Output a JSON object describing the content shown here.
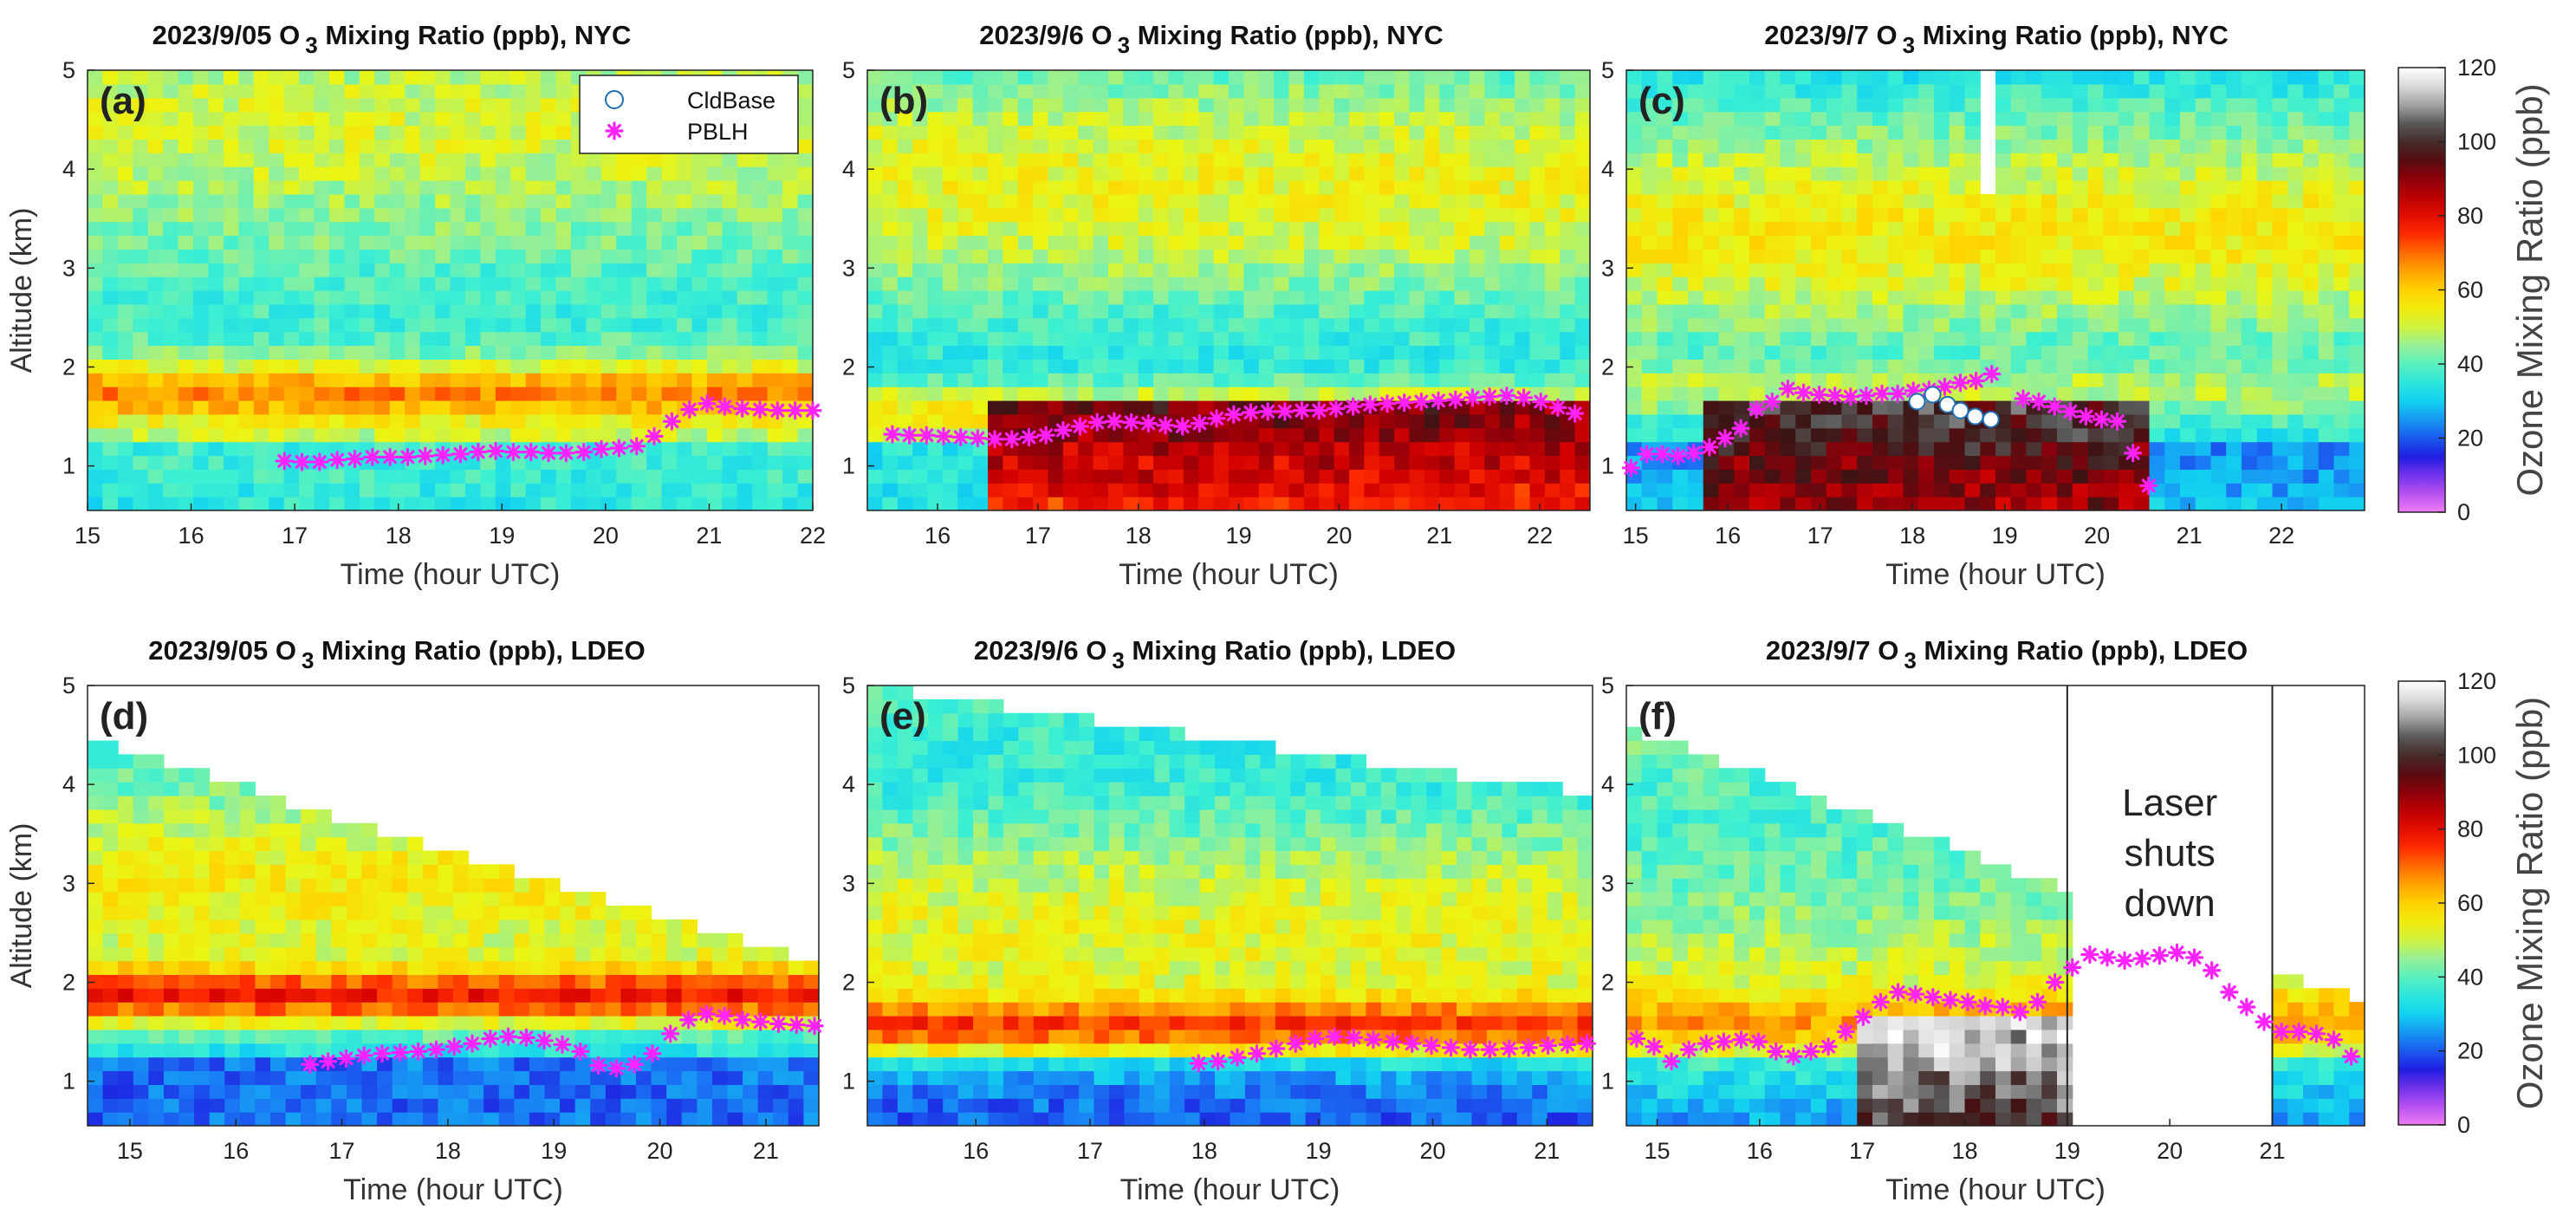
{
  "chart_data": [
    {
      "id": "a",
      "type": "heatmap",
      "panel_label": "(a)",
      "title": "2023/9/05 O 3 Mixing Ratio (ppb), NYC",
      "title_parts": [
        "2023/9/05 O",
        "3",
        " Mixing Ratio (ppb), NYC"
      ],
      "xlabel": "Time (hour UTC)",
      "ylabel": "Altitude (km)",
      "xlim": [
        15,
        22
      ],
      "ylim": [
        0.55,
        5
      ],
      "xticks": [
        "15",
        "16",
        "17",
        "18",
        "19",
        "20",
        "21",
        "22"
      ],
      "xtick_values": [
        15,
        16,
        17,
        18,
        19,
        20,
        21,
        22
      ],
      "yticks": [
        "1",
        "2",
        "3",
        "4",
        "5"
      ],
      "ytick_values": [
        1,
        2,
        3,
        4,
        5
      ],
      "data_start": 15,
      "data_end": 22,
      "data_top": 5,
      "layer_alt": 1.75,
      "layer_peak": 72,
      "pblh": {
        "x": [
          16.9,
          17.07,
          17.24,
          17.41,
          17.58,
          17.75,
          17.92,
          18.09,
          18.26,
          18.43,
          18.6,
          18.77,
          18.94,
          19.11,
          19.28,
          19.45,
          19.62,
          19.79,
          19.96,
          20.13,
          20.3,
          20.47,
          20.64,
          20.81,
          20.98,
          21.15,
          21.32,
          21.49,
          21.66,
          21.83,
          22.0
        ],
        "y": [
          1.05,
          1.04,
          1.04,
          1.06,
          1.07,
          1.09,
          1.09,
          1.09,
          1.1,
          1.11,
          1.12,
          1.14,
          1.15,
          1.14,
          1.14,
          1.13,
          1.13,
          1.14,
          1.17,
          1.18,
          1.2,
          1.3,
          1.45,
          1.57,
          1.63,
          1.6,
          1.58,
          1.57,
          1.56,
          1.56,
          1.56
        ]
      },
      "legend": {
        "entries": [
          "CldBase",
          "PBLH"
        ],
        "location": "top-right"
      }
    },
    {
      "id": "b",
      "type": "heatmap",
      "panel_label": "(b)",
      "title": "2023/9/6 O 3 Mixing Ratio (ppb), NYC",
      "title_parts": [
        "2023/9/6 O",
        "3",
        " Mixing Ratio (ppb), NYC"
      ],
      "xlabel": "Time (hour UTC)",
      "ylabel": "",
      "xlim": [
        15.3,
        22.5
      ],
      "ylim": [
        0.55,
        5
      ],
      "xticks": [
        "16",
        "17",
        "18",
        "19",
        "20",
        "21",
        "22"
      ],
      "xtick_values": [
        16,
        17,
        18,
        19,
        20,
        21,
        22
      ],
      "yticks": [
        "1",
        "2",
        "3",
        "4",
        "5"
      ],
      "ytick_values": [
        1,
        2,
        3,
        4,
        5
      ],
      "data_start": 15.3,
      "data_end": 22.5,
      "data_top": 5,
      "layer_alt": 1.55,
      "layer_peak": 66,
      "bl_start": 16.5,
      "bl_peak": 88,
      "pblh": {
        "x": [
          15.55,
          15.72,
          15.89,
          16.06,
          16.23,
          16.4,
          16.57,
          16.74,
          16.91,
          17.08,
          17.25,
          17.42,
          17.59,
          17.76,
          17.93,
          18.1,
          18.27,
          18.44,
          18.61,
          18.78,
          18.95,
          19.12,
          19.29,
          19.46,
          19.63,
          19.8,
          19.97,
          20.14,
          20.31,
          20.48,
          20.65,
          20.82,
          20.99,
          21.16,
          21.33,
          21.5,
          21.67,
          21.84,
          22.01,
          22.18,
          22.35
        ],
        "y": [
          1.32,
          1.31,
          1.31,
          1.3,
          1.29,
          1.28,
          1.27,
          1.27,
          1.29,
          1.31,
          1.36,
          1.4,
          1.44,
          1.45,
          1.44,
          1.43,
          1.41,
          1.4,
          1.43,
          1.48,
          1.52,
          1.54,
          1.55,
          1.55,
          1.56,
          1.56,
          1.58,
          1.6,
          1.62,
          1.63,
          1.64,
          1.65,
          1.66,
          1.67,
          1.69,
          1.7,
          1.71,
          1.69,
          1.65,
          1.59,
          1.53
        ]
      }
    },
    {
      "id": "c",
      "type": "heatmap",
      "panel_label": "(c)",
      "title": "2023/9/7 O 3 Mixing Ratio (ppb), NYC",
      "title_parts": [
        "2023/9/7 O",
        "3",
        " Mixing Ratio (ppb), NYC"
      ],
      "xlabel": "Time (hour UTC)",
      "ylabel": "",
      "xlim": [
        14.9,
        22.9
      ],
      "ylim": [
        0.55,
        5
      ],
      "xticks": [
        "15",
        "16",
        "17",
        "18",
        "19",
        "20",
        "21",
        "22"
      ],
      "xtick_values": [
        15,
        16,
        17,
        18,
        19,
        20,
        21,
        22
      ],
      "yticks": [
        "1",
        "2",
        "3",
        "4",
        "5"
      ],
      "ytick_values": [
        1,
        2,
        3,
        4,
        5
      ],
      "data_start": 14.9,
      "data_end": 22.9,
      "data_top": 5,
      "layer_alt": 1.75,
      "layer_peak": 62,
      "bl_start": 15.8,
      "bl_end": 20.5,
      "bl_peak": 98,
      "gap": {
        "x0": 18.7,
        "x1": 18.82,
        "y_from": 3.8
      },
      "pblh": {
        "x": [
          14.95,
          15.12,
          15.29,
          15.46,
          15.63,
          15.8,
          15.97,
          16.14,
          16.31,
          16.48,
          16.65,
          16.82,
          16.99,
          17.16,
          17.33,
          17.5,
          17.67,
          17.84,
          18.01,
          18.18,
          18.35,
          18.52,
          18.69,
          18.86,
          19.03,
          19.2,
          19.37,
          19.54,
          19.71,
          19.88,
          20.05,
          20.22,
          20.39,
          20.56
        ],
        "y": [
          0.98,
          1.12,
          1.12,
          1.1,
          1.13,
          1.19,
          1.28,
          1.38,
          1.57,
          1.65,
          1.78,
          1.74,
          1.72,
          1.71,
          1.7,
          1.71,
          1.73,
          1.73,
          1.76,
          1.77,
          1.8,
          1.84,
          1.86,
          1.93,
          null,
          1.68,
          1.65,
          1.6,
          1.55,
          1.5,
          1.47,
          1.45,
          1.13,
          0.8
        ]
      },
      "cldbase": {
        "x": [
          18.05,
          18.22,
          18.38,
          18.52,
          18.68,
          18.85
        ],
        "y": [
          1.65,
          1.72,
          1.62,
          1.56,
          1.5,
          1.47
        ]
      }
    },
    {
      "id": "d",
      "type": "heatmap",
      "panel_label": "(d)",
      "title": "2023/9/05 O 3 Mixing Ratio (ppb), LDEO",
      "title_parts": [
        "2023/9/05 O",
        "3",
        " Mixing Ratio (ppb), LDEO"
      ],
      "xlabel": "Time (hour UTC)",
      "ylabel": "Altitude (km)",
      "xlim": [
        14.6,
        21.5
      ],
      "ylim": [
        0.55,
        5
      ],
      "xticks": [
        "15",
        "16",
        "17",
        "18",
        "19",
        "20",
        "21"
      ],
      "xtick_values": [
        15,
        16,
        17,
        18,
        19,
        20,
        21
      ],
      "yticks": [
        "1",
        "2",
        "3",
        "4",
        "5"
      ],
      "ytick_values": [
        1,
        2,
        3,
        4,
        5
      ],
      "data_start": 14.6,
      "data_end": 21.5,
      "data_top_start": 4.45,
      "data_top_end": 2.2,
      "layer_alt": 1.85,
      "layer_peak": 84,
      "pblh": {
        "x": [
          16.7,
          16.87,
          17.04,
          17.21,
          17.38,
          17.55,
          17.72,
          17.89,
          18.06,
          18.23,
          18.4,
          18.57,
          18.74,
          18.91,
          19.08,
          19.25,
          19.42,
          19.59,
          19.76,
          19.93,
          20.1,
          20.27,
          20.44,
          20.61,
          20.78,
          20.95,
          21.12,
          21.29,
          21.46
        ],
        "y": [
          1.17,
          1.2,
          1.23,
          1.26,
          1.28,
          1.29,
          1.3,
          1.32,
          1.35,
          1.38,
          1.43,
          1.45,
          1.44,
          1.41,
          1.37,
          1.3,
          1.16,
          1.13,
          1.17,
          1.28,
          1.48,
          1.62,
          1.68,
          1.66,
          1.62,
          1.6,
          1.58,
          1.57,
          1.56
        ]
      }
    },
    {
      "id": "e",
      "type": "heatmap",
      "panel_label": "(e)",
      "title": "2023/9/6 O 3 Mixing Ratio (ppb), LDEO",
      "title_parts": [
        "2023/9/6 O",
        "3",
        " Mixing Ratio (ppb), LDEO"
      ],
      "xlabel": "Time (hour UTC)",
      "ylabel": "",
      "xlim": [
        15.05,
        21.4
      ],
      "ylim": [
        0.55,
        5
      ],
      "xticks": [
        "16",
        "17",
        "18",
        "19",
        "20",
        "21"
      ],
      "xtick_values": [
        16,
        17,
        18,
        19,
        20,
        21
      ],
      "yticks": [
        "1",
        "2",
        "3",
        "4",
        "5"
      ],
      "ytick_values": [
        1,
        2,
        3,
        4,
        5
      ],
      "data_start": 15.05,
      "data_end": 21.4,
      "data_top_start": 5,
      "data_top_end": 3.9,
      "layer_alt": 1.55,
      "layer_peak": 78,
      "pblh": {
        "x": [
          17.95,
          18.12,
          18.29,
          18.46,
          18.63,
          18.8,
          18.97,
          19.14,
          19.31,
          19.48,
          19.65,
          19.82,
          19.99,
          20.16,
          20.33,
          20.5,
          20.67,
          20.84,
          21.01,
          21.18,
          21.35
        ],
        "y": [
          1.18,
          1.2,
          1.24,
          1.28,
          1.33,
          1.38,
          1.43,
          1.45,
          1.44,
          1.42,
          1.4,
          1.38,
          1.36,
          1.34,
          1.32,
          1.32,
          1.33,
          1.34,
          1.36,
          1.37,
          1.38
        ]
      }
    },
    {
      "id": "f",
      "type": "heatmap",
      "panel_label": "(f)",
      "title": "2023/9/7 O 3 Mixing Ratio (ppb), LDEO",
      "title_parts": [
        "2023/9/7 O",
        "3",
        " Mixing Ratio (ppb), LDEO"
      ],
      "xlabel": "Time (hour UTC)",
      "ylabel": "",
      "xlim": [
        14.7,
        21.9
      ],
      "ylim": [
        0.55,
        5
      ],
      "xticks": [
        "15",
        "16",
        "17",
        "18",
        "19",
        "20",
        "21"
      ],
      "xtick_values": [
        15,
        16,
        17,
        18,
        19,
        20,
        21
      ],
      "yticks": [
        "1",
        "2",
        "3",
        "4",
        "5"
      ],
      "ytick_values": [
        1,
        2,
        3,
        4,
        5
      ],
      "data_start": 14.7,
      "data_end": 21.9,
      "data_top_start": 4.6,
      "data_top_end": 1.8,
      "layer_alt": 1.6,
      "layer_peak": 64,
      "bl_start": 17.0,
      "bl_end": 19.0,
      "bl_peak": 112,
      "gap": {
        "x0": 19.0,
        "x1": 21.0,
        "y_from": 0.55
      },
      "gap_lines": [
        19,
        21
      ],
      "annotation": {
        "lines": [
          "Laser",
          "shuts",
          "down"
        ],
        "x": 20.0
      },
      "pblh": {
        "x": [
          14.8,
          14.97,
          15.14,
          15.31,
          15.48,
          15.65,
          15.82,
          15.99,
          16.16,
          16.33,
          16.5,
          16.67,
          16.84,
          17.01,
          17.18,
          17.35,
          17.52,
          17.69,
          17.86,
          18.03,
          18.2,
          18.37,
          18.54,
          18.71,
          18.88,
          19.05,
          19.22,
          19.39,
          19.56,
          19.73,
          19.9,
          20.07,
          20.24,
          20.41,
          20.58,
          20.75,
          20.92,
          21.09,
          21.26,
          21.43,
          21.6,
          21.77
        ],
        "y": [
          1.43,
          1.35,
          1.2,
          1.32,
          1.38,
          1.4,
          1.42,
          1.4,
          1.3,
          1.25,
          1.3,
          1.35,
          1.5,
          1.65,
          1.8,
          1.9,
          1.88,
          1.85,
          1.82,
          1.8,
          1.76,
          1.75,
          1.7,
          1.8,
          2.0,
          2.15,
          2.28,
          2.25,
          2.22,
          2.24,
          2.27,
          2.3,
          2.25,
          2.12,
          1.9,
          1.75,
          1.6,
          1.5,
          1.5,
          1.48,
          1.42,
          1.25
        ]
      }
    }
  ],
  "colorbar": {
    "label": "Ozone Mixing Ratio (ppb)",
    "ticks": [
      "120",
      "100",
      "80",
      "60",
      "40",
      "20",
      "0"
    ],
    "tick_values": [
      120,
      100,
      80,
      60,
      40,
      20,
      0
    ],
    "range": [
      0,
      120
    ],
    "colormap": [
      "#f07cf2",
      "#9b3cf0",
      "#1e1ee0",
      "#1a78f5",
      "#12d2f0",
      "#3cf0d2",
      "#96f096",
      "#ebf514",
      "#ffd200",
      "#ff8c00",
      "#ff2a00",
      "#d20000",
      "#8c000a",
      "#3c1414",
      "#5a5a5a",
      "#c8c8c8",
      "#ffffff"
    ]
  },
  "colors": {
    "pblh": "#ff22ff",
    "cldbase": "#1f6fb5",
    "axis": "#222222"
  }
}
